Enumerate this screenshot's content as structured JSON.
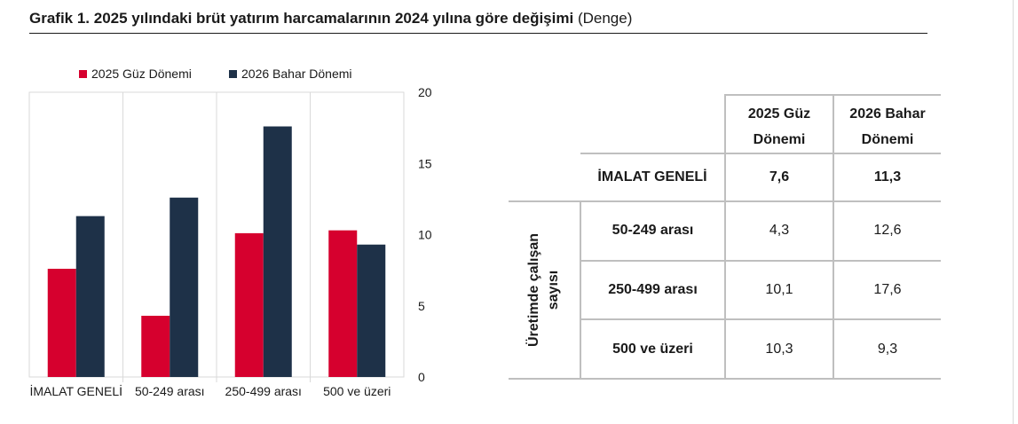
{
  "title": {
    "main": "Grafik 1. 2025 yılındaki brüt yatırım harcamalarının 2024 yılına göre değişimi",
    "subtitle": "(Denge)"
  },
  "colors": {
    "series1": "#d6002e",
    "series2": "#1e3148",
    "grid": "#d9d9d9",
    "border": "#bfbfbf"
  },
  "chart_data": {
    "type": "bar",
    "categories": [
      "İMALAT GENELİ",
      "50-249 arası",
      "250-499 arası",
      "500 ve üzeri"
    ],
    "series": [
      {
        "name": "2025 Güz Dönemi",
        "values": [
          7.6,
          4.3,
          10.1,
          10.3
        ]
      },
      {
        "name": "2026 Bahar Dönemi",
        "values": [
          11.3,
          12.6,
          17.6,
          9.3
        ]
      }
    ],
    "ylim": [
      0,
      20
    ],
    "yticks": [
      0,
      5,
      10,
      15,
      20
    ],
    "yaxis_side": "right",
    "legend_position": "top",
    "grid": false
  },
  "table": {
    "headers": [
      "2025 Güz Dönemi",
      "2026 Bahar Dönemi"
    ],
    "general": {
      "label": "İMALAT GENELİ",
      "v1": "7,6",
      "v2": "11,3"
    },
    "group_label": "Üretimde çalışan sayısı",
    "rows": [
      {
        "label": "50-249 arası",
        "v1": "4,3",
        "v2": "12,6"
      },
      {
        "label": "250-499 arası",
        "v1": "10,1",
        "v2": "17,6"
      },
      {
        "label": "500 ve üzeri",
        "v1": "10,3",
        "v2": "9,3"
      }
    ]
  }
}
